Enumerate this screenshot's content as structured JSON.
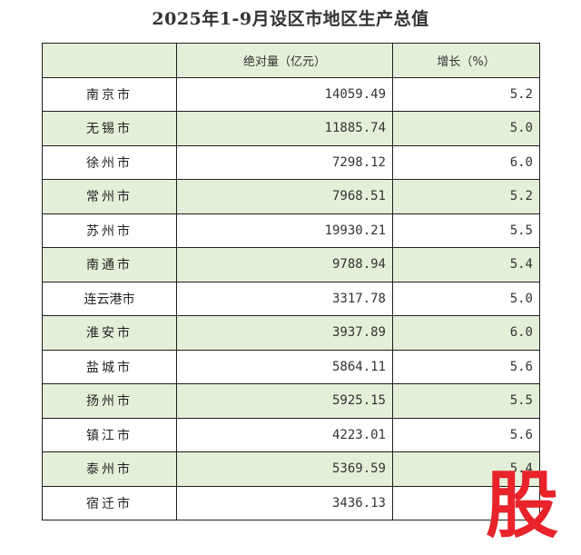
{
  "title": "2025年1-9月设区市地区生产总值",
  "columns": [
    "",
    "绝对量（亿元）",
    "增长（%）"
  ],
  "rows": [
    {
      "city": "南京市",
      "value": "14059.49",
      "growth": "5.2"
    },
    {
      "city": "无锡市",
      "value": "11885.74",
      "growth": "5.0"
    },
    {
      "city": "徐州市",
      "value": "7298.12",
      "growth": "6.0"
    },
    {
      "city": "常州市",
      "value": "7968.51",
      "growth": "5.2"
    },
    {
      "city": "苏州市",
      "value": "19930.21",
      "growth": "5.5"
    },
    {
      "city": "南通市",
      "value": "9788.94",
      "growth": "5.4"
    },
    {
      "city": "连云港市",
      "value": "3317.78",
      "growth": "5.0"
    },
    {
      "city": "淮安市",
      "value": "3937.89",
      "growth": "6.0"
    },
    {
      "city": "盐城市",
      "value": "5864.11",
      "growth": "5.6"
    },
    {
      "city": "扬州市",
      "value": "5925.15",
      "growth": "5.5"
    },
    {
      "city": "镇江市",
      "value": "4223.01",
      "growth": "5.6"
    },
    {
      "city": "泰州市",
      "value": "5369.59",
      "growth": "5.4"
    },
    {
      "city": "宿迁市",
      "value": "3436.13",
      "growth": ""
    }
  ],
  "watermark": "股",
  "colors": {
    "row_shade": "#e4efd9",
    "watermark": "#e8232a",
    "border": "#1f1f1f"
  }
}
